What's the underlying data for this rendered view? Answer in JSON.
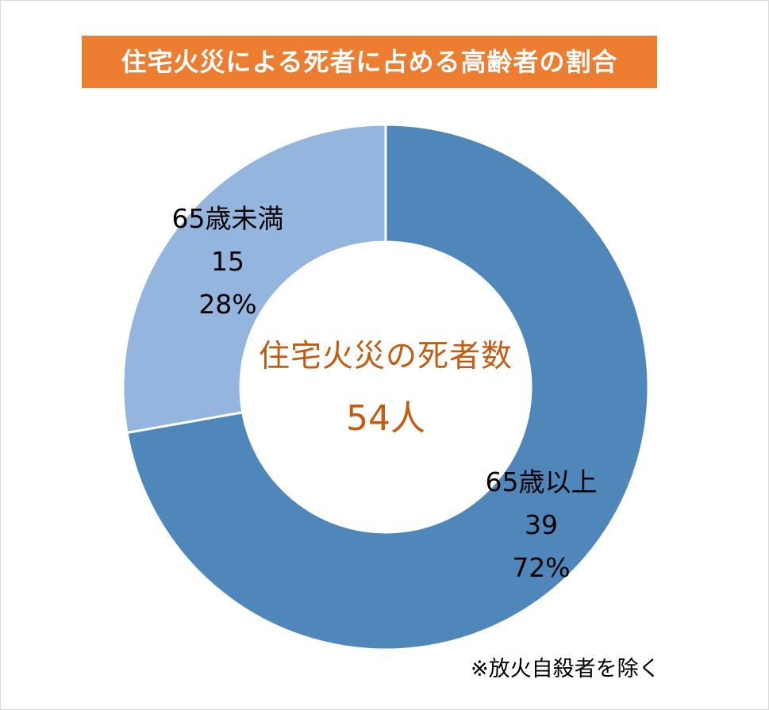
{
  "title": "住宅火災による死者に占める高齢者の割合",
  "center": {
    "title": "住宅火災の死者数",
    "value": "54人"
  },
  "footnote": "※放火自殺者を除く",
  "colors": {
    "title_bg": "#ed7d31",
    "title_text": "#ffffff",
    "center_text": "#c55a11",
    "slice_65_over": "#4f87ba",
    "slice_under_65": "#94b6de",
    "slice_border": "#ffffff"
  },
  "chart_data": {
    "type": "pie",
    "variant": "donut",
    "total": 54,
    "slices": [
      {
        "name": "65歳以上",
        "value": 39,
        "percent": "72%"
      },
      {
        "name": "65歳未満",
        "value": 15,
        "percent": "28%"
      }
    ],
    "start": "12 o'clock",
    "direction": "clockwise",
    "legend": "none",
    "labels": {
      "65_over": {
        "name": "65歳以上",
        "value": "39",
        "percent": "72%"
      },
      "under_65": {
        "name": "65歳未満",
        "value": "15",
        "percent": "28%"
      }
    }
  }
}
